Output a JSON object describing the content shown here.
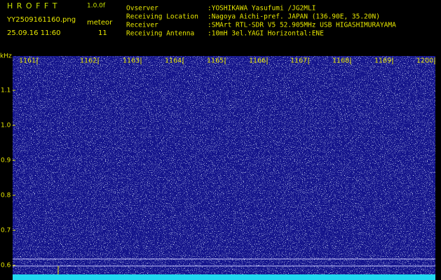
{
  "header": {
    "app": "H R O F F T",
    "version": "1.0.0f",
    "file": "YY2509161160.png",
    "datetime": "25.09.16 11:60",
    "mode": "meteor",
    "count": "11"
  },
  "info": [
    {
      "label": "Ovserver",
      "value": ":YOSHIKAWA Yasufumi /JG2MLI"
    },
    {
      "label": "Receiving Location",
      "value": ":Nagoya Aichi-pref. JAPAN (136.90E, 35.20N)"
    },
    {
      "label": "Receiver",
      "value": ":SMArt RTL-SDR V5 52.905MHz USB HIGASHIMURAYAMA"
    },
    {
      "label": "Receiving Antenna",
      "value": ":10mH 3el.YAGI Horizontal:ENE"
    }
  ],
  "axis": {
    "unit": "kHz",
    "yticks": [
      "1.1",
      "1.0",
      "0.9",
      "0.8",
      "0.7",
      "0.6"
    ],
    "xticks": [
      "1161",
      "1162",
      "1163",
      "1164",
      "1165",
      "1166",
      "1167",
      "1168",
      "1169",
      "1200"
    ]
  }
}
